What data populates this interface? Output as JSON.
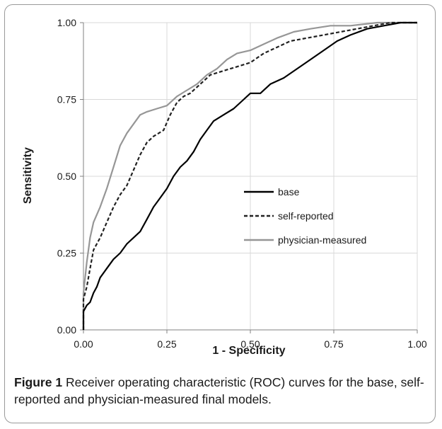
{
  "caption": {
    "lead": "Figure 1",
    "text": " Receiver operating characteristic (ROC) curves for the base, self-reported and physician-measured final models."
  },
  "chart_data": {
    "type": "line",
    "title": "",
    "xlabel": "1 - Specificity",
    "ylabel": "Sensitivity",
    "xlim": [
      0,
      1
    ],
    "ylim": [
      0,
      1
    ],
    "xticks": [
      "0.00",
      "0.25",
      "0.50",
      "0.75",
      "1.00"
    ],
    "yticks": [
      "0.00",
      "0.25",
      "0.50",
      "0.75",
      "1.00"
    ],
    "grid": true,
    "legend_position": "center-right",
    "series": [
      {
        "name": "base",
        "color": "#000000",
        "dash": "solid",
        "points": [
          [
            0,
            0
          ],
          [
            0,
            0.06
          ],
          [
            0.01,
            0.08
          ],
          [
            0.02,
            0.09
          ],
          [
            0.03,
            0.12
          ],
          [
            0.04,
            0.14
          ],
          [
            0.05,
            0.17
          ],
          [
            0.07,
            0.2
          ],
          [
            0.09,
            0.23
          ],
          [
            0.11,
            0.25
          ],
          [
            0.13,
            0.28
          ],
          [
            0.15,
            0.3
          ],
          [
            0.17,
            0.32
          ],
          [
            0.19,
            0.36
          ],
          [
            0.21,
            0.4
          ],
          [
            0.23,
            0.43
          ],
          [
            0.25,
            0.46
          ],
          [
            0.27,
            0.5
          ],
          [
            0.29,
            0.53
          ],
          [
            0.31,
            0.55
          ],
          [
            0.33,
            0.58
          ],
          [
            0.35,
            0.62
          ],
          [
            0.37,
            0.65
          ],
          [
            0.39,
            0.68
          ],
          [
            0.42,
            0.7
          ],
          [
            0.45,
            0.72
          ],
          [
            0.48,
            0.75
          ],
          [
            0.5,
            0.77
          ],
          [
            0.53,
            0.77
          ],
          [
            0.56,
            0.8
          ],
          [
            0.6,
            0.82
          ],
          [
            0.64,
            0.85
          ],
          [
            0.68,
            0.88
          ],
          [
            0.72,
            0.91
          ],
          [
            0.76,
            0.94
          ],
          [
            0.8,
            0.96
          ],
          [
            0.85,
            0.98
          ],
          [
            0.9,
            0.99
          ],
          [
            0.95,
            1
          ],
          [
            1,
            1
          ]
        ]
      },
      {
        "name": "self-reported",
        "color": "#222222",
        "dash": "dashed",
        "points": [
          [
            0,
            0
          ],
          [
            0,
            0.1
          ],
          [
            0.01,
            0.14
          ],
          [
            0.02,
            0.2
          ],
          [
            0.03,
            0.26
          ],
          [
            0.05,
            0.3
          ],
          [
            0.07,
            0.35
          ],
          [
            0.09,
            0.4
          ],
          [
            0.11,
            0.44
          ],
          [
            0.13,
            0.47
          ],
          [
            0.15,
            0.52
          ],
          [
            0.17,
            0.57
          ],
          [
            0.19,
            0.61
          ],
          [
            0.21,
            0.63
          ],
          [
            0.24,
            0.65
          ],
          [
            0.26,
            0.7
          ],
          [
            0.28,
            0.74
          ],
          [
            0.3,
            0.76
          ],
          [
            0.32,
            0.77
          ],
          [
            0.34,
            0.79
          ],
          [
            0.36,
            0.81
          ],
          [
            0.38,
            0.83
          ],
          [
            0.41,
            0.84
          ],
          [
            0.44,
            0.85
          ],
          [
            0.47,
            0.86
          ],
          [
            0.5,
            0.87
          ],
          [
            0.54,
            0.9
          ],
          [
            0.58,
            0.92
          ],
          [
            0.62,
            0.94
          ],
          [
            0.67,
            0.95
          ],
          [
            0.72,
            0.96
          ],
          [
            0.77,
            0.97
          ],
          [
            0.82,
            0.98
          ],
          [
            0.87,
            0.99
          ],
          [
            0.92,
            1
          ],
          [
            1,
            1
          ]
        ]
      },
      {
        "name": "physician-measured",
        "color": "#969696",
        "dash": "solid",
        "points": [
          [
            0,
            0
          ],
          [
            0,
            0.12
          ],
          [
            0.01,
            0.22
          ],
          [
            0.02,
            0.3
          ],
          [
            0.03,
            0.35
          ],
          [
            0.05,
            0.4
          ],
          [
            0.07,
            0.46
          ],
          [
            0.09,
            0.53
          ],
          [
            0.11,
            0.6
          ],
          [
            0.13,
            0.64
          ],
          [
            0.15,
            0.67
          ],
          [
            0.17,
            0.7
          ],
          [
            0.19,
            0.71
          ],
          [
            0.22,
            0.72
          ],
          [
            0.25,
            0.73
          ],
          [
            0.28,
            0.76
          ],
          [
            0.31,
            0.78
          ],
          [
            0.34,
            0.8
          ],
          [
            0.37,
            0.83
          ],
          [
            0.4,
            0.85
          ],
          [
            0.43,
            0.88
          ],
          [
            0.46,
            0.9
          ],
          [
            0.5,
            0.91
          ],
          [
            0.54,
            0.93
          ],
          [
            0.58,
            0.95
          ],
          [
            0.63,
            0.97
          ],
          [
            0.68,
            0.98
          ],
          [
            0.74,
            0.99
          ],
          [
            0.8,
            0.99
          ],
          [
            0.88,
            1
          ],
          [
            0.95,
            1
          ],
          [
            1,
            1
          ]
        ]
      }
    ]
  }
}
